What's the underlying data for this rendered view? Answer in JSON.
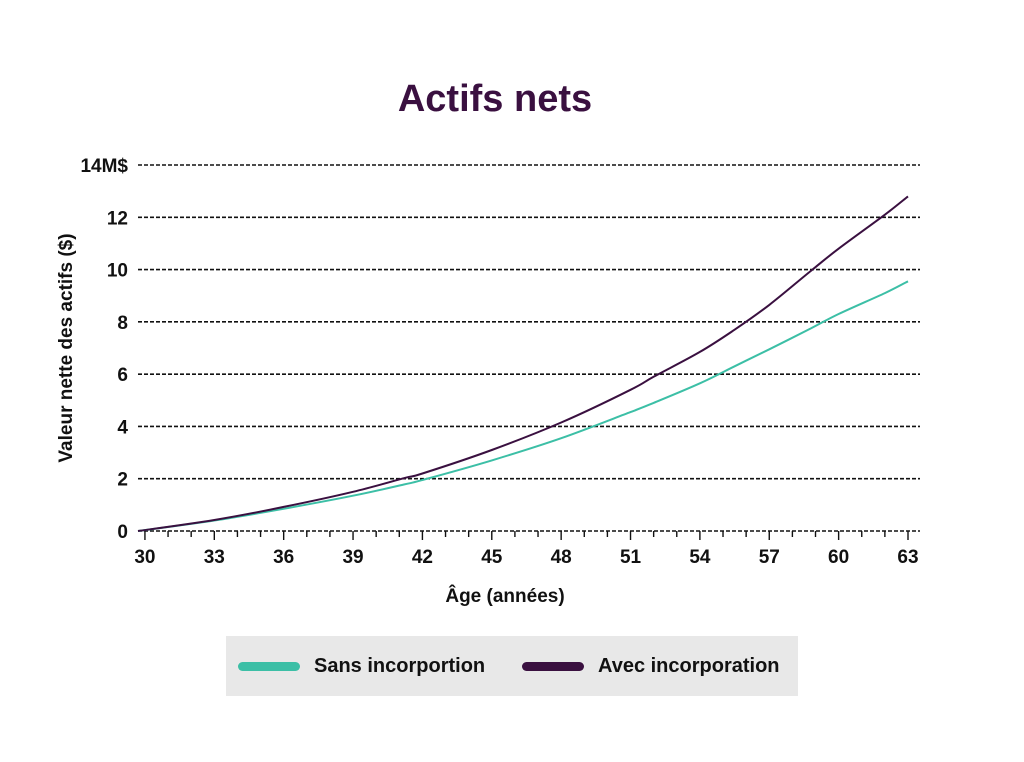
{
  "chart_data": {
    "type": "line",
    "title": "Actifs nets",
    "xlabel": "Âge (années)",
    "ylabel": "Valeur nette des actifs ($)",
    "xlim": [
      29.7,
      63
    ],
    "ylim": [
      0,
      14
    ],
    "x_ticks": [
      30,
      33,
      36,
      39,
      42,
      45,
      48,
      51,
      54,
      57,
      60,
      63
    ],
    "y_ticks": [
      0,
      2,
      4,
      6,
      8,
      10,
      12,
      14
    ],
    "y_tick_labels": [
      "0",
      "2",
      "4",
      "6",
      "8",
      "10",
      "12",
      "14M$"
    ],
    "x": [
      29.7,
      33,
      36,
      39,
      41.2,
      42,
      45,
      48,
      51,
      52,
      54,
      55.5,
      57,
      58.8,
      60,
      62,
      63
    ],
    "series": [
      {
        "name": "Sans incorportion",
        "color": "#3cbfa6",
        "values": [
          0,
          0.4,
          0.85,
          1.35,
          1.78,
          1.95,
          2.7,
          3.55,
          4.55,
          4.9,
          5.65,
          6.3,
          6.95,
          7.75,
          8.3,
          9.1,
          9.55
        ]
      },
      {
        "name": "Avec incorporation",
        "color": "#3a1040",
        "values": [
          0,
          0.42,
          0.92,
          1.5,
          2.02,
          2.2,
          3.1,
          4.15,
          5.4,
          5.9,
          6.85,
          7.7,
          8.65,
          9.95,
          10.8,
          12.1,
          12.8
        ]
      }
    ],
    "grid": "horizontal dashed",
    "legend_position": "bottom"
  }
}
